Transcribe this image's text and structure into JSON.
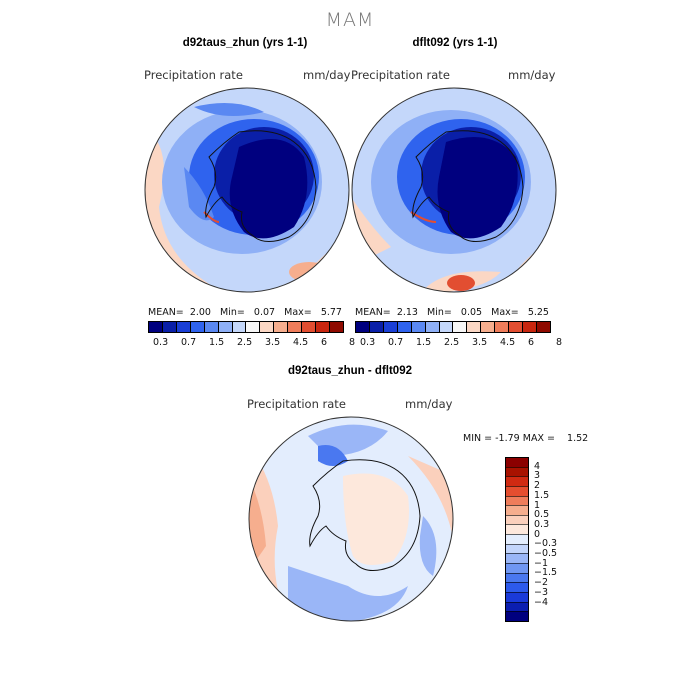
{
  "season": "MAM",
  "panels": [
    {
      "title": "d92taus_zhun (yrs 1-1)",
      "variable": "Precipitation rate",
      "units": "mm/day",
      "stats": {
        "mean_label": "MEAN=",
        "mean": "2.00",
        "min_label": "Min=",
        "min": "0.07",
        "max_label": "Max=",
        "max": "5.77"
      }
    },
    {
      "title": "dflt092 (yrs 1-1)",
      "variable": "Precipitation rate",
      "units": "mm/day",
      "stats": {
        "mean_label": "MEAN=",
        "mean": "2.13",
        "min_label": "Min=",
        "min": "0.05",
        "max_label": "Max=",
        "max": "5.25"
      }
    },
    {
      "title": "d92taus_zhun - dflt092",
      "variable": "Precipitation rate",
      "units": "mm/day",
      "stats": {
        "min_label": "MIN =",
        "min": "-1.79",
        "max_label": "MAX =",
        "max": "1.52"
      }
    }
  ],
  "colorbar_abs": {
    "colors": [
      "#00007f",
      "#0a1fa8",
      "#1a3fd6",
      "#2f63ee",
      "#5a88f2",
      "#8fb0f6",
      "#c4d7fa",
      "#f7f7f7",
      "#fbd7c4",
      "#f6ae8e",
      "#ef7d5b",
      "#e24e31",
      "#c8260f",
      "#8f0a00"
    ],
    "ticks": [
      "0.3",
      "0.7",
      "1.5",
      "2.5",
      "3.5",
      "4.5",
      "6",
      "8"
    ]
  },
  "colorbar_diff": {
    "colors": [
      "#00007f",
      "#0b1eb0",
      "#1a3ad9",
      "#2d5aec",
      "#4a78f0",
      "#7097f3",
      "#9ab6f7",
      "#c3d5fb",
      "#e3edfd",
      "#fde8dc",
      "#fbd0bc",
      "#f6ae8e",
      "#ef7d5b",
      "#e54e2f",
      "#d02a12",
      "#a81200",
      "#8b0000"
    ],
    "labels": [
      "4",
      "3",
      "2",
      "1.5",
      "1",
      "0.5",
      "0.3",
      "0",
      "−0.3",
      "−0.5",
      "−1",
      "−1.5",
      "−2",
      "−3",
      "−4"
    ]
  }
}
